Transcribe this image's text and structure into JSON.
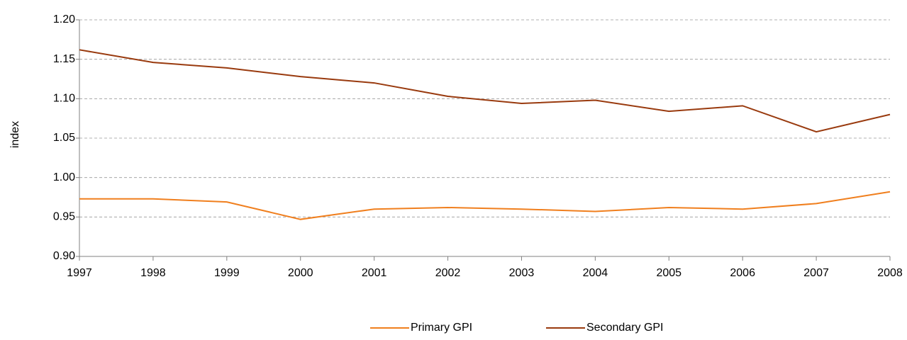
{
  "chart_data": {
    "type": "line",
    "y_label": "index",
    "categories": [
      "1997",
      "1998",
      "1999",
      "2000",
      "2001",
      "2002",
      "2003",
      "2004",
      "2005",
      "2006",
      "2007",
      "2008"
    ],
    "series": [
      {
        "name": "Primary GPI",
        "color": "#f07f1e",
        "values": [
          0.973,
          0.973,
          0.969,
          0.947,
          0.96,
          0.962,
          0.96,
          0.957,
          0.962,
          0.96,
          0.967,
          0.982
        ]
      },
      {
        "name": "Secondary GPI",
        "color": "#993a0e",
        "values": [
          1.162,
          1.146,
          1.139,
          1.128,
          1.12,
          1.103,
          1.094,
          1.098,
          1.084,
          1.091,
          1.058,
          1.08
        ]
      }
    ],
    "ylim": [
      0.9,
      1.2
    ],
    "yticks": [
      {
        "value": 0.9,
        "label": "0.90"
      },
      0.95,
      {
        "value": 1,
        "label": "1.00"
      },
      1.05,
      {
        "value": 1.1,
        "label": "1.10"
      },
      1.15,
      {
        "value": 1.2,
        "label": "1.20"
      }
    ],
    "grid": true,
    "legend": "bottom"
  }
}
